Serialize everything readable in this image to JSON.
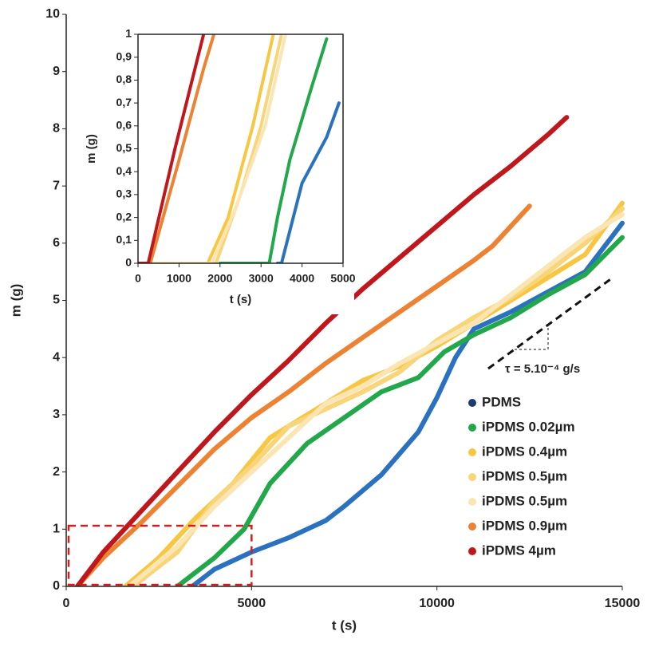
{
  "chart_data": [
    {
      "type": "line",
      "x_label": "t (s)",
      "y_label": "m (g)",
      "xlim": [
        0,
        15000
      ],
      "ylim": [
        0,
        10
      ],
      "xticks": [
        0,
        5000,
        10000,
        15000
      ],
      "yticks": [
        0,
        1,
        2,
        3,
        4,
        5,
        6,
        7,
        8,
        9,
        10
      ],
      "legend": "lower right",
      "annotation": "τ = 5.10⁻⁴ g/s",
      "series": [
        {
          "name": "PDMS",
          "color": "#2a72c0",
          "legend_color": "#1b3b70",
          "x": [
            3400,
            4000,
            5000,
            6000,
            7000,
            7500,
            8500,
            9500,
            10000,
            10500,
            11000,
            12000,
            13000,
            14000,
            15000
          ],
          "values": [
            0,
            0.3,
            0.6,
            0.85,
            1.15,
            1.4,
            1.95,
            2.7,
            3.3,
            4.0,
            4.5,
            4.8,
            5.15,
            5.5,
            6.35
          ]
        },
        {
          "name": "iPDMS 0.02µm",
          "color": "#22a84a",
          "x": [
            3000,
            4000,
            4800,
            5500,
            6500,
            7500,
            8500,
            9500,
            10200,
            11000,
            12000,
            13000,
            14000,
            15000
          ],
          "values": [
            0,
            0.5,
            1.0,
            1.8,
            2.5,
            2.95,
            3.4,
            3.65,
            4.1,
            4.4,
            4.7,
            5.1,
            5.45,
            6.1
          ]
        },
        {
          "name": "iPDMS 0.4µm",
          "color": "#f7c744",
          "x": [
            1600,
            2500,
            3500,
            4500,
            5500,
            7000,
            8000,
            9000,
            10000,
            11000,
            12000,
            13000,
            14000,
            15000
          ],
          "values": [
            0,
            0.5,
            1.2,
            1.8,
            2.6,
            3.2,
            3.6,
            3.85,
            4.2,
            4.6,
            5.0,
            5.4,
            5.8,
            6.7
          ]
        },
        {
          "name": "iPDMS 0.5µm",
          "color": "#f9d57a",
          "x": [
            1800,
            3000,
            4000,
            5000,
            6000,
            7000,
            8000,
            9000,
            10000,
            11000,
            12000,
            13000,
            14000,
            15000
          ],
          "values": [
            0,
            0.6,
            1.5,
            2.1,
            2.8,
            3.1,
            3.4,
            3.75,
            4.3,
            4.7,
            5.05,
            5.5,
            6.0,
            6.6
          ]
        },
        {
          "name": "iPDMS 0.5µm",
          "color": "#fbe6b3",
          "x": [
            1700,
            3000,
            4000,
            5000,
            6000,
            7000,
            8000,
            9000,
            10000,
            11000,
            12000,
            13000,
            14000,
            15000
          ],
          "values": [
            0,
            0.7,
            1.4,
            2.0,
            2.6,
            3.2,
            3.5,
            3.9,
            4.25,
            4.6,
            5.1,
            5.6,
            6.1,
            6.5
          ]
        },
        {
          "name": "iPDMS 0.9µm",
          "color": "#ec8232",
          "x": [
            300,
            1000,
            2000,
            3000,
            4000,
            5000,
            6000,
            7000,
            8000,
            9000,
            10000,
            11000,
            11500,
            12500
          ],
          "values": [
            0,
            0.5,
            1.1,
            1.75,
            2.4,
            2.95,
            3.4,
            3.9,
            4.35,
            4.8,
            5.25,
            5.7,
            5.95,
            6.65
          ]
        },
        {
          "name": "iPDMS 4µm",
          "color": "#c0171c",
          "x": [
            300,
            1000,
            2000,
            3000,
            4000,
            5000,
            6000,
            7000,
            8000,
            9000,
            10000,
            11000,
            12000,
            13000,
            13500
          ],
          "values": [
            0,
            0.6,
            1.3,
            2.0,
            2.7,
            3.35,
            3.95,
            4.6,
            5.2,
            5.75,
            6.3,
            6.85,
            7.35,
            7.9,
            8.2
          ]
        }
      ]
    },
    {
      "type": "line",
      "x_label": "t (s)",
      "y_label": "m (g)",
      "xlim": [
        0,
        5000
      ],
      "ylim": [
        0,
        1
      ],
      "xticks": [
        0,
        1000,
        2000,
        3000,
        4000,
        5000
      ],
      "yticks": [
        0,
        {
          "value": 0.1,
          "label": "0,1"
        },
        {
          "value": 0.2,
          "label": "0,2"
        },
        {
          "value": 0.3,
          "label": "0,3"
        },
        {
          "value": 0.4,
          "label": "0,4"
        },
        {
          "value": 0.5,
          "label": "0,5"
        },
        {
          "value": 0.6,
          "label": "0,6"
        },
        {
          "value": 0.7,
          "label": "0,7"
        },
        {
          "value": 0.8,
          "label": "0,8"
        },
        {
          "value": 0.9,
          "label": "0,9"
        },
        1
      ],
      "series": [
        {
          "color": "#2a72c0",
          "x": [
            3400,
            3500,
            4000,
            4600,
            4900
          ],
          "values": [
            0,
            0,
            0.35,
            0.55,
            0.7
          ]
        },
        {
          "color": "#22a84a",
          "x": [
            2000,
            3200,
            3400,
            3700,
            4200,
            4600
          ],
          "values": [
            0,
            0,
            0.2,
            0.45,
            0.75,
            0.98
          ]
        },
        {
          "color": "#f7c744",
          "x": [
            0,
            1700,
            2200,
            2800,
            3300
          ],
          "values": [
            0,
            0,
            0.2,
            0.6,
            1
          ]
        },
        {
          "color": "#f9d57a",
          "x": [
            0,
            1900,
            2500,
            3000,
            3500
          ],
          "values": [
            0,
            0,
            0.3,
            0.6,
            1
          ]
        },
        {
          "color": "#fbe6b3",
          "x": [
            0,
            1800,
            2400,
            3100,
            3600
          ],
          "values": [
            0,
            0,
            0.25,
            0.6,
            1
          ]
        },
        {
          "color": "#ec8232",
          "x": [
            0,
            300,
            1000,
            1600,
            1850
          ],
          "values": [
            0,
            0,
            0.45,
            0.85,
            1
          ]
        },
        {
          "color": "#c0171c",
          "x": [
            0,
            250,
            900,
            1600
          ],
          "values": [
            0,
            0,
            0.5,
            1
          ]
        }
      ]
    }
  ]
}
